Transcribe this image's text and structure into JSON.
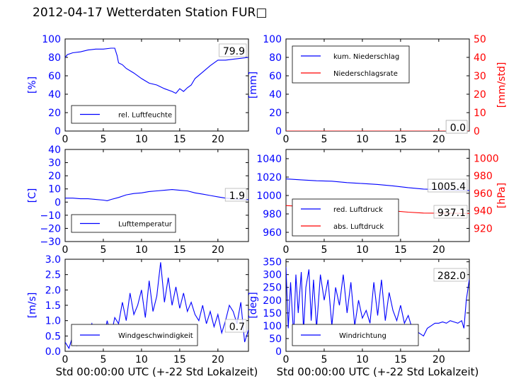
{
  "title": "2012-04-17 Wetterdaten Station FUR□",
  "colors": {
    "primary": "#0000ff",
    "secondary": "#ff0000",
    "axis": "#000000",
    "second_axis_text": "#ff0000",
    "primary_axis_text": "#0000ff"
  },
  "chart_data": [
    {
      "id": "humidity",
      "type": "line",
      "xlim": [
        0,
        24
      ],
      "ylim": [
        0,
        100
      ],
      "xticks": [
        0,
        5,
        10,
        15,
        20
      ],
      "yticks": [
        0,
        20,
        40,
        60,
        80,
        100
      ],
      "ylabel": "[%]",
      "xlabel": "",
      "legend_placement": "lower-left",
      "current_value": "79.9",
      "series": [
        {
          "name": "rel. Luftfeuchte",
          "color": "#0000ff",
          "axis": "left",
          "x": [
            0,
            0.3,
            1,
            2,
            3,
            4,
            5,
            6,
            6.5,
            6.8,
            7,
            7.5,
            8,
            9,
            10,
            11,
            12,
            13,
            14,
            14.5,
            15,
            15.5,
            16,
            16.5,
            17,
            18,
            19,
            20,
            21,
            22,
            23,
            24
          ],
          "y": [
            80,
            83,
            85,
            86,
            88,
            89,
            89,
            90,
            90,
            82,
            74,
            72,
            68,
            63,
            57,
            52,
            50,
            46,
            43,
            41,
            46,
            43,
            47,
            50,
            57,
            64,
            71,
            77,
            77,
            78,
            79,
            80
          ]
        }
      ]
    },
    {
      "id": "precipitation",
      "type": "line",
      "xlim": [
        0,
        24
      ],
      "ylim": [
        0,
        100
      ],
      "ylim2": [
        0,
        50
      ],
      "xticks": [
        0,
        5,
        10,
        15,
        20
      ],
      "yticks": [
        0,
        20,
        40,
        60,
        80,
        100
      ],
      "yticks2": [
        0,
        10,
        20,
        30,
        40,
        50
      ],
      "ylabel": "[mm]",
      "ylabel2": "[mm/std]",
      "xlabel": "",
      "legend_placement": "upper-left",
      "current_value": "0.0",
      "current_value2": "0.0",
      "series": [
        {
          "name": "kum. Niederschlag",
          "color": "#0000ff",
          "axis": "left",
          "x": [
            0,
            24
          ],
          "y": [
            0,
            0
          ]
        },
        {
          "name": "Niederschlagsrate",
          "color": "#ff0000",
          "axis": "right",
          "x": [
            0,
            24
          ],
          "y": [
            0,
            0
          ]
        }
      ]
    },
    {
      "id": "temperature",
      "type": "line",
      "xlim": [
        0,
        24
      ],
      "ylim": [
        -30,
        40
      ],
      "xticks": [
        0,
        5,
        10,
        15,
        20
      ],
      "yticks": [
        -30,
        -20,
        -10,
        0,
        10,
        20,
        30,
        40
      ],
      "ylabel": "[C]",
      "xlabel": "",
      "legend_placement": "lower-left",
      "current_value": "1.9",
      "series": [
        {
          "name": "Lufttemperatur",
          "color": "#0000ff",
          "axis": "left",
          "x": [
            0,
            1,
            2,
            3,
            4,
            5,
            5.5,
            6,
            7,
            8,
            9,
            10,
            11,
            12,
            13,
            14,
            15,
            16,
            17,
            18,
            19,
            20,
            21,
            22,
            23,
            24
          ],
          "y": [
            3,
            3,
            2.5,
            2.5,
            2,
            1.5,
            1,
            2,
            3.5,
            5.5,
            6.5,
            7,
            8,
            8.5,
            9,
            9.5,
            9,
            8.5,
            7,
            6,
            5,
            4,
            3,
            2.5,
            2,
            1.9
          ]
        }
      ]
    },
    {
      "id": "pressure",
      "type": "line",
      "xlim": [
        0,
        24
      ],
      "ylim": [
        950,
        1050
      ],
      "ylim2": [
        905,
        1010
      ],
      "xticks": [
        0,
        5,
        10,
        15,
        20
      ],
      "yticks": [
        960,
        980,
        1000,
        1020,
        1040
      ],
      "yticks2": [
        920,
        940,
        960,
        980,
        1000
      ],
      "ylabel": "",
      "ylabel2": "[hPa]",
      "xlabel": "",
      "legend_placement": "lower-left",
      "current_value": "1005.4",
      "current_value2": "937.1",
      "series": [
        {
          "name": "red. Luftdruck",
          "color": "#0000ff",
          "axis": "left",
          "x": [
            0,
            2,
            4,
            6,
            8,
            10,
            12,
            14,
            16,
            18,
            20,
            22,
            24
          ],
          "y": [
            1018,
            1017,
            1016,
            1015.5,
            1014,
            1013,
            1012,
            1010.5,
            1008.5,
            1007,
            1006.5,
            1006,
            1005.4
          ]
        },
        {
          "name": "abs. Luftdruck",
          "color": "#ff0000",
          "axis": "right",
          "x": [
            0,
            2,
            4,
            6,
            8,
            10,
            12,
            14,
            16,
            18,
            20,
            22,
            24
          ],
          "y": [
            946,
            945,
            944.5,
            944,
            943,
            942,
            941,
            940,
            938.5,
            937.5,
            937.3,
            937.2,
            937.1
          ]
        }
      ]
    },
    {
      "id": "windspeed",
      "type": "line",
      "xlim": [
        0,
        24
      ],
      "ylim": [
        0,
        3.0
      ],
      "xticks": [
        0,
        5,
        10,
        15,
        20
      ],
      "yticks": [
        0.0,
        0.5,
        1.0,
        1.5,
        2.0,
        2.5,
        3.0
      ],
      "ylabel": "[m/s]",
      "xlabel": "Std 00:00:00 UTC (+-22 Std Lokalzeit)",
      "legend_placement": "lower-center",
      "current_value": "0.7",
      "series": [
        {
          "name": "Windgeschwindigkeit",
          "color": "#0000ff",
          "axis": "left",
          "x": [
            0,
            0.5,
            1,
            1.5,
            2,
            2.5,
            3,
            3.5,
            4,
            4.5,
            5,
            5.5,
            6,
            6.5,
            7,
            7.5,
            8,
            8.5,
            9,
            9.5,
            10,
            10.5,
            11,
            11.5,
            12,
            12.5,
            13,
            13.5,
            14,
            14.5,
            15,
            15.5,
            16,
            16.5,
            17,
            17.5,
            18,
            18.5,
            19,
            19.5,
            20,
            20.5,
            21,
            21.5,
            22,
            22.5,
            23,
            23.5,
            24
          ],
          "y": [
            0.3,
            0.1,
            0.5,
            0.2,
            0.8,
            0.3,
            0.6,
            0.9,
            0.2,
            0.7,
            0.4,
            1.0,
            0.5,
            1.1,
            0.9,
            1.6,
            1.0,
            1.9,
            1.2,
            1.5,
            2.0,
            1.1,
            2.3,
            1.3,
            1.8,
            2.9,
            1.6,
            2.4,
            1.5,
            2.1,
            1.4,
            1.9,
            1.3,
            1.6,
            1.2,
            1.0,
            1.5,
            0.9,
            1.3,
            0.8,
            1.2,
            0.6,
            1.0,
            1.5,
            1.3,
            0.9,
            1.6,
            0.3,
            0.7
          ]
        }
      ]
    },
    {
      "id": "winddirection",
      "type": "line",
      "xlim": [
        0,
        24
      ],
      "ylim": [
        0,
        360
      ],
      "xticks": [
        0,
        5,
        10,
        15,
        20
      ],
      "yticks": [
        0,
        50,
        100,
        150,
        200,
        250,
        300,
        350
      ],
      "ylabel": "[deg]",
      "xlabel": "Std 00:00:00 UTC (+-22 Std Lokalzeit)",
      "legend_placement": "lower-center",
      "current_value": "282.0",
      "series": [
        {
          "name": "Windrichtung",
          "color": "#0000ff",
          "axis": "left",
          "x": [
            0,
            0.3,
            0.6,
            1,
            1.3,
            1.6,
            2,
            2.3,
            2.6,
            3,
            3.3,
            3.6,
            4,
            4.5,
            5,
            5.5,
            6,
            6.5,
            7,
            7.5,
            8,
            8.5,
            9,
            9.5,
            10,
            10.5,
            11,
            11.5,
            12,
            12.5,
            13,
            13.5,
            14,
            14.5,
            15,
            15.5,
            16,
            16.5,
            17,
            17.5,
            18,
            18.5,
            19,
            19.5,
            20,
            20.5,
            21,
            21.5,
            22,
            22.5,
            23,
            23.3,
            23.6,
            24
          ],
          "y": [
            330,
            90,
            270,
            60,
            300,
            150,
            310,
            80,
            250,
            320,
            120,
            280,
            90,
            300,
            200,
            280,
            100,
            250,
            180,
            300,
            150,
            270,
            100,
            200,
            130,
            160,
            110,
            270,
            140,
            280,
            120,
            230,
            160,
            120,
            180,
            110,
            140,
            90,
            80,
            70,
            60,
            90,
            100,
            110,
            110,
            115,
            110,
            120,
            115,
            110,
            120,
            90,
            200,
            282
          ]
        }
      ]
    }
  ]
}
